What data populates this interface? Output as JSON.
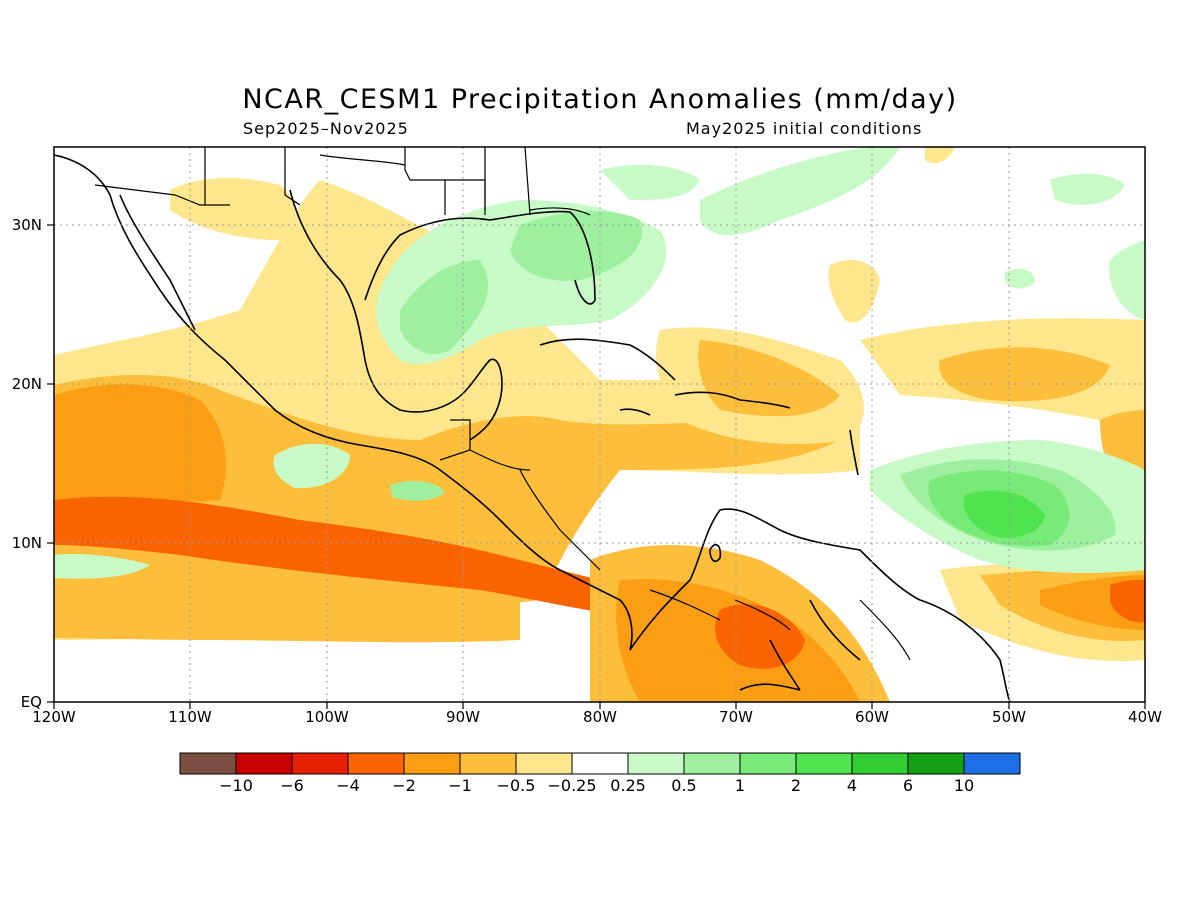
{
  "title": "NCAR_CESM1 Precipitation Anomalies (mm/day)",
  "period": "Sep2025–Nov2025",
  "initial_conditions": "May2025 initial conditions",
  "units": "mm/day",
  "axes": {
    "lat_labels": [
      "30N",
      "20N",
      "10N",
      "EQ"
    ],
    "lon_labels": [
      "120W",
      "110W",
      "100W",
      "90W",
      "80W",
      "70W",
      "60W",
      "50W",
      "40W"
    ],
    "lat_range": [
      0,
      35
    ],
    "lon_range": [
      -120,
      -40
    ],
    "grid": "dotted"
  },
  "colorbar": {
    "colors": [
      "#7a4f42",
      "#c80000",
      "#e62000",
      "#fa6400",
      "#fb9e14",
      "#fdbe3c",
      "#fde68c",
      "#ffffff",
      "#c8fac8",
      "#9ef09e",
      "#78ea78",
      "#50e350",
      "#32cd32",
      "#14a014",
      "#1e6ee6"
    ],
    "tick_labels": [
      "−10",
      "−6",
      "−4",
      "−2",
      "−1",
      "−0.5",
      "−0.25",
      "0.25",
      "0.5",
      "1",
      "2",
      "4",
      "6",
      "10"
    ]
  }
}
